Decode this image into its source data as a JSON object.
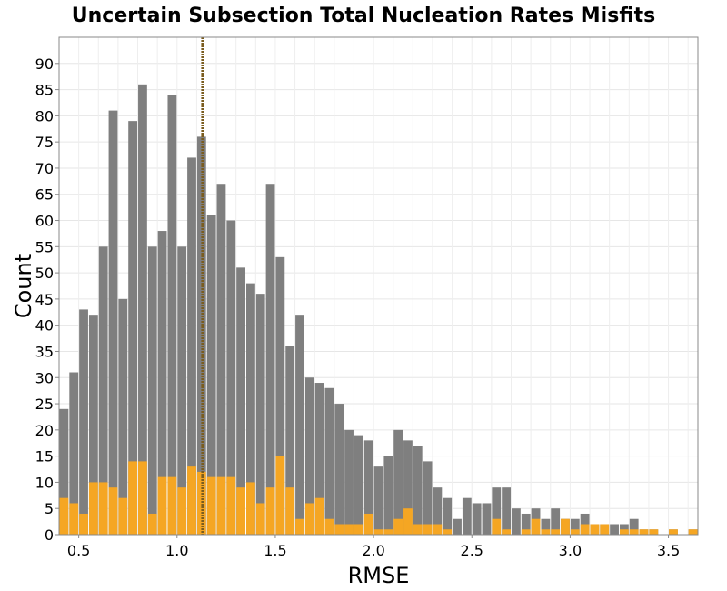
{
  "chart_data": {
    "type": "bar",
    "title": "Uncertain Subsection Total Nucleation Rates Misfits",
    "xlabel": "RMSE",
    "ylabel": "Count",
    "xlim": [
      0.4,
      3.65
    ],
    "ylim": [
      0,
      95
    ],
    "xticks": [
      "0.5",
      "1.0",
      "1.5",
      "2.0",
      "2.5",
      "3.0",
      "3.5"
    ],
    "yticks": [
      "0",
      "5",
      "10",
      "15",
      "20",
      "25",
      "30",
      "35",
      "40",
      "45",
      "50",
      "55",
      "60",
      "65",
      "70",
      "75",
      "80",
      "85",
      "90"
    ],
    "grid": true,
    "bin_start": 0.4,
    "bin_width": 0.05,
    "colors": {
      "total": "#7f7f7f",
      "subset": "#f5a623",
      "reference_line": "#7a5c1e"
    },
    "reference_line_x": 1.13,
    "series": [
      {
        "color": "#7f7f7f",
        "values": [
          24,
          31,
          43,
          42,
          55,
          81,
          45,
          79,
          86,
          55,
          58,
          84,
          55,
          72,
          76,
          61,
          67,
          60,
          51,
          48,
          46,
          67,
          53,
          36,
          42,
          30,
          29,
          28,
          25,
          20,
          19,
          18,
          13,
          15,
          20,
          18,
          17,
          14,
          9,
          7,
          3,
          7,
          6,
          6,
          9,
          9,
          5,
          4,
          5,
          3,
          5,
          3,
          3,
          4,
          2,
          2,
          2,
          2,
          3,
          1,
          1,
          0,
          1,
          0,
          1
        ]
      },
      {
        "color": "#f5a623",
        "values": [
          7,
          6,
          4,
          10,
          10,
          9,
          7,
          14,
          14,
          4,
          11,
          11,
          9,
          13,
          12,
          11,
          11,
          11,
          9,
          10,
          6,
          9,
          15,
          9,
          3,
          6,
          7,
          3,
          2,
          2,
          2,
          4,
          1,
          1,
          3,
          5,
          2,
          2,
          2,
          1,
          0,
          0,
          0,
          0,
          3,
          1,
          0,
          1,
          3,
          1,
          1,
          3,
          1,
          2,
          2,
          2,
          0,
          1,
          1,
          1,
          1,
          0,
          1,
          0,
          1
        ]
      }
    ]
  }
}
